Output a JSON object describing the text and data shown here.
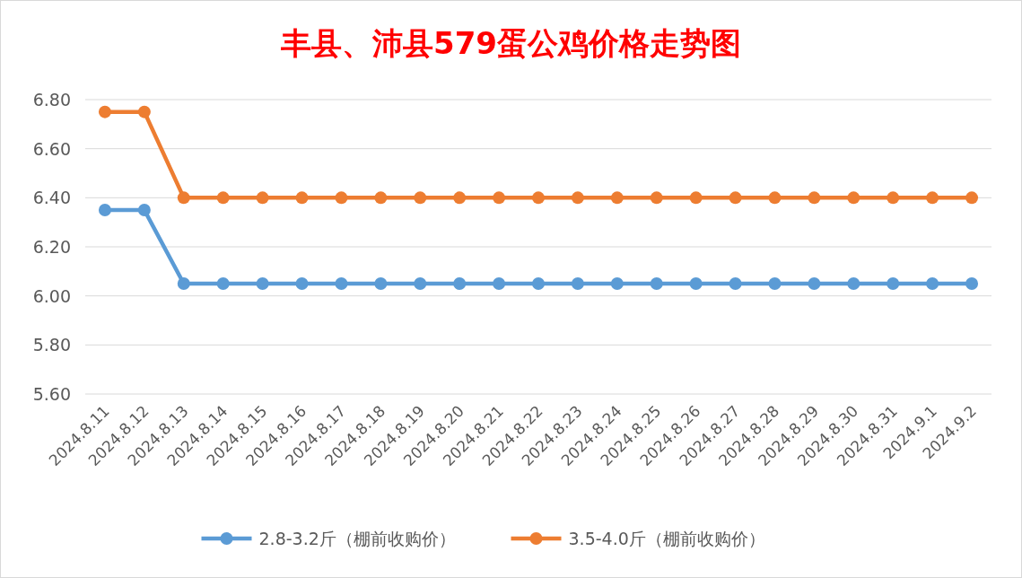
{
  "chart_data": {
    "type": "line",
    "title": "丰县、沛县579蛋公鸡价格走势图",
    "categories": [
      "2024.8.11",
      "2024.8.12",
      "2024.8.13",
      "2024.8.14",
      "2024.8.15",
      "2024.8.16",
      "2024.8.17",
      "2024.8.18",
      "2024.8.19",
      "2024.8.20",
      "2024.8.21",
      "2024.8.22",
      "2024.8.23",
      "2024.8.24",
      "2024.8.25",
      "2024.8.26",
      "2024.8.27",
      "2024.8.28",
      "2024.8.29",
      "2024.8.30",
      "2024.8.31",
      "2024.9.1",
      "2024.9.2"
    ],
    "series": [
      {
        "name": "2.8-3.2斤（棚前收购价）",
        "color": "#5b9bd5",
        "values": [
          6.35,
          6.35,
          6.05,
          6.05,
          6.05,
          6.05,
          6.05,
          6.05,
          6.05,
          6.05,
          6.05,
          6.05,
          6.05,
          6.05,
          6.05,
          6.05,
          6.05,
          6.05,
          6.05,
          6.05,
          6.05,
          6.05,
          6.05
        ]
      },
      {
        "name": "3.5-4.0斤（棚前收购价）",
        "color": "#ed7d31",
        "values": [
          6.75,
          6.75,
          6.4,
          6.4,
          6.4,
          6.4,
          6.4,
          6.4,
          6.4,
          6.4,
          6.4,
          6.4,
          6.4,
          6.4,
          6.4,
          6.4,
          6.4,
          6.4,
          6.4,
          6.4,
          6.4,
          6.4,
          6.4
        ]
      }
    ],
    "ylim": [
      5.6,
      6.8
    ],
    "yticks": [
      {
        "value": 5.6,
        "label": "5.60"
      },
      {
        "value": 5.8,
        "label": "5.80"
      },
      {
        "value": 6.0,
        "label": "6.00"
      },
      {
        "value": 6.2,
        "label": "6.20"
      },
      {
        "value": 6.4,
        "label": "6.40"
      },
      {
        "value": 6.6,
        "label": "6.60"
      },
      {
        "value": 6.8,
        "label": "6.80"
      }
    ],
    "grid": "y",
    "legend": "bottom",
    "marker": "circle",
    "line_style": "solid"
  }
}
